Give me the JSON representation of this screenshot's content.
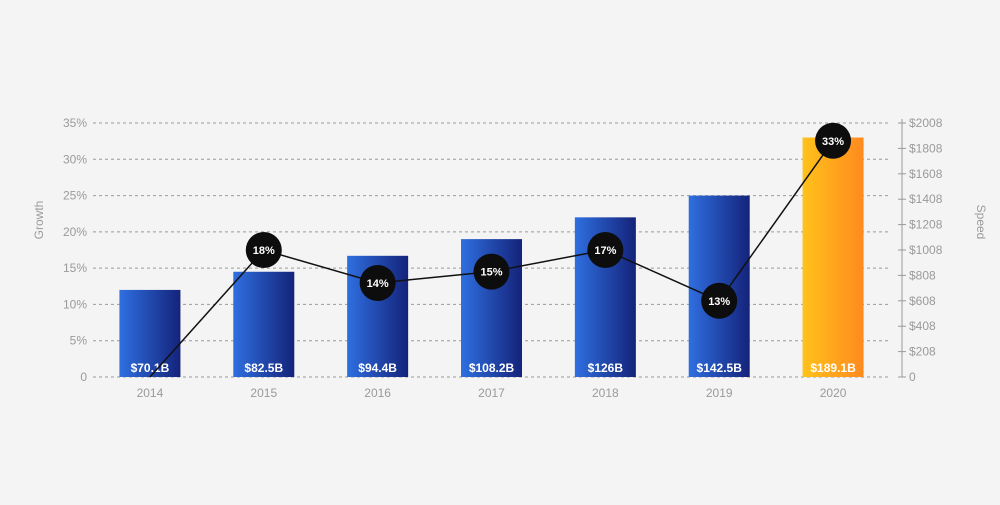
{
  "chart_data": {
    "type": "bar",
    "categories": [
      "2014",
      "2015",
      "2016",
      "2017",
      "2018",
      "2019",
      "2020"
    ],
    "bar_series": {
      "values": [
        12,
        14.5,
        16.7,
        19,
        22,
        25,
        33
      ],
      "labels": [
        "$70.1B",
        "$82.5B",
        "$94.4B",
        "$108.2B",
        "$126B",
        "$142.5B",
        "$189.1B"
      ]
    },
    "line_series": {
      "values": [
        0,
        1000,
        740,
        830,
        1000,
        600,
        1860
      ],
      "labels": [
        "",
        "18%",
        "14%",
        "15%",
        "17%",
        "13%",
        "33%"
      ]
    },
    "y_left": {
      "label": "Growth",
      "ylim": [
        0,
        35
      ],
      "ticks": [
        "0",
        "5%",
        "10%",
        "15%",
        "20%",
        "25%",
        "30%",
        "35%"
      ]
    },
    "y_right": {
      "label": "Speed",
      "ylim": [
        0,
        2000
      ],
      "ticks": [
        "0",
        "$208",
        "$408",
        "$608",
        "$808",
        "$1008",
        "$1208",
        "$1408",
        "$1608",
        "$1808",
        "$2008"
      ]
    },
    "grid": true,
    "colors": {
      "bar_start": "#2f6fe0",
      "bar_end": "#14237a",
      "highlight_start": "#ffc21a",
      "highlight_end": "#ff8a1f",
      "marker": "#0d0d0d",
      "line": "#111111",
      "grid": "#9a9a9a"
    }
  }
}
